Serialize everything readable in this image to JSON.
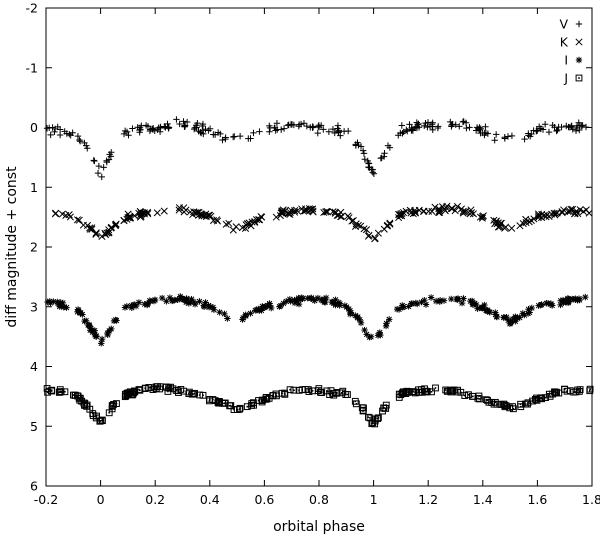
{
  "chart_data": {
    "type": "scatter",
    "title": "",
    "xlabel": "orbital phase",
    "ylabel": "diff magnitude + const",
    "xlim": [
      -0.2,
      1.8
    ],
    "ylim": [
      6,
      -2
    ],
    "y_inverted": true,
    "grid": false,
    "legend_placement": "top-right",
    "xticks": [
      "-0.2",
      "0",
      "0.2",
      "0.4",
      "0.6",
      "0.8",
      "1",
      "1.2",
      "1.4",
      "1.6",
      "1.8"
    ],
    "yticks": [
      "-2",
      "-1",
      "0",
      "1",
      "2",
      "3",
      "4",
      "5",
      "6"
    ],
    "series": [
      {
        "name": "V",
        "marker": "plus",
        "base": 0.05,
        "primary_depth": 0.75,
        "secondary_depth": 0.18,
        "scatter": 0.12,
        "x": [
          -0.2,
          -0.1,
          -0.05,
          -0.02,
          0,
          0.02,
          0.05,
          0.1,
          0.2,
          0.3,
          0.4,
          0.45,
          0.5,
          0.55,
          0.6,
          0.7,
          0.8,
          0.9,
          0.95,
          0.98,
          1.0,
          1.02,
          1.05,
          1.1,
          1.2,
          1.3,
          1.4,
          1.45,
          1.5,
          1.55,
          1.6,
          1.7,
          1.8
        ],
        "y": [
          0.05,
          0.1,
          0.3,
          0.6,
          0.8,
          0.6,
          0.3,
          0.05,
          0.0,
          -0.05,
          0.05,
          0.15,
          0.2,
          0.15,
          0.05,
          -0.05,
          0.0,
          0.1,
          0.3,
          0.6,
          0.8,
          0.6,
          0.3,
          0.05,
          -0.05,
          -0.05,
          0.05,
          0.15,
          0.2,
          0.15,
          0.05,
          0.0,
          -0.05
        ]
      },
      {
        "name": "K",
        "marker": "cross",
        "base": 1.45,
        "primary_depth": 0.4,
        "secondary_depth": 0.25,
        "scatter": 0.07,
        "x": [
          -0.2,
          -0.1,
          -0.05,
          0,
          0.05,
          0.1,
          0.2,
          0.3,
          0.4,
          0.5,
          0.6,
          0.7,
          0.8,
          0.9,
          0.95,
          1.0,
          1.05,
          1.1,
          1.2,
          1.3,
          1.4,
          1.5,
          1.6,
          1.7,
          1.8
        ],
        "y": [
          1.4,
          1.5,
          1.65,
          1.85,
          1.65,
          1.5,
          1.4,
          1.35,
          1.5,
          1.7,
          1.5,
          1.4,
          1.4,
          1.5,
          1.65,
          1.85,
          1.65,
          1.45,
          1.4,
          1.35,
          1.5,
          1.7,
          1.5,
          1.4,
          1.4
        ]
      },
      {
        "name": "I",
        "marker": "star",
        "base": 2.9,
        "primary_depth": 0.7,
        "secondary_depth": 0.35,
        "scatter": 0.08,
        "x": [
          -0.2,
          -0.1,
          -0.05,
          0,
          0.05,
          0.1,
          0.2,
          0.3,
          0.4,
          0.5,
          0.6,
          0.7,
          0.8,
          0.9,
          0.95,
          1.0,
          1.05,
          1.1,
          1.2,
          1.3,
          1.4,
          1.5,
          1.6,
          1.7,
          1.8
        ],
        "y": [
          2.9,
          3.0,
          3.25,
          3.6,
          3.25,
          3.0,
          2.9,
          2.85,
          3.0,
          3.25,
          3.0,
          2.9,
          2.85,
          3.0,
          3.25,
          3.6,
          3.25,
          3.0,
          2.9,
          2.85,
          3.0,
          3.25,
          3.0,
          2.9,
          2.85
        ]
      },
      {
        "name": "J",
        "marker": "square-dot",
        "base": 4.4,
        "primary_depth": 0.6,
        "secondary_depth": 0.3,
        "scatter": 0.06,
        "x": [
          -0.2,
          -0.1,
          -0.05,
          0,
          0.05,
          0.1,
          0.2,
          0.3,
          0.4,
          0.5,
          0.6,
          0.7,
          0.8,
          0.9,
          0.95,
          1.0,
          1.05,
          1.1,
          1.2,
          1.3,
          1.4,
          1.5,
          1.6,
          1.7,
          1.8
        ],
        "y": [
          4.4,
          4.45,
          4.65,
          4.95,
          4.65,
          4.45,
          4.35,
          4.4,
          4.55,
          4.7,
          4.55,
          4.4,
          4.4,
          4.45,
          4.65,
          4.95,
          4.65,
          4.45,
          4.4,
          4.4,
          4.55,
          4.7,
          4.55,
          4.4,
          4.4
        ]
      }
    ]
  }
}
